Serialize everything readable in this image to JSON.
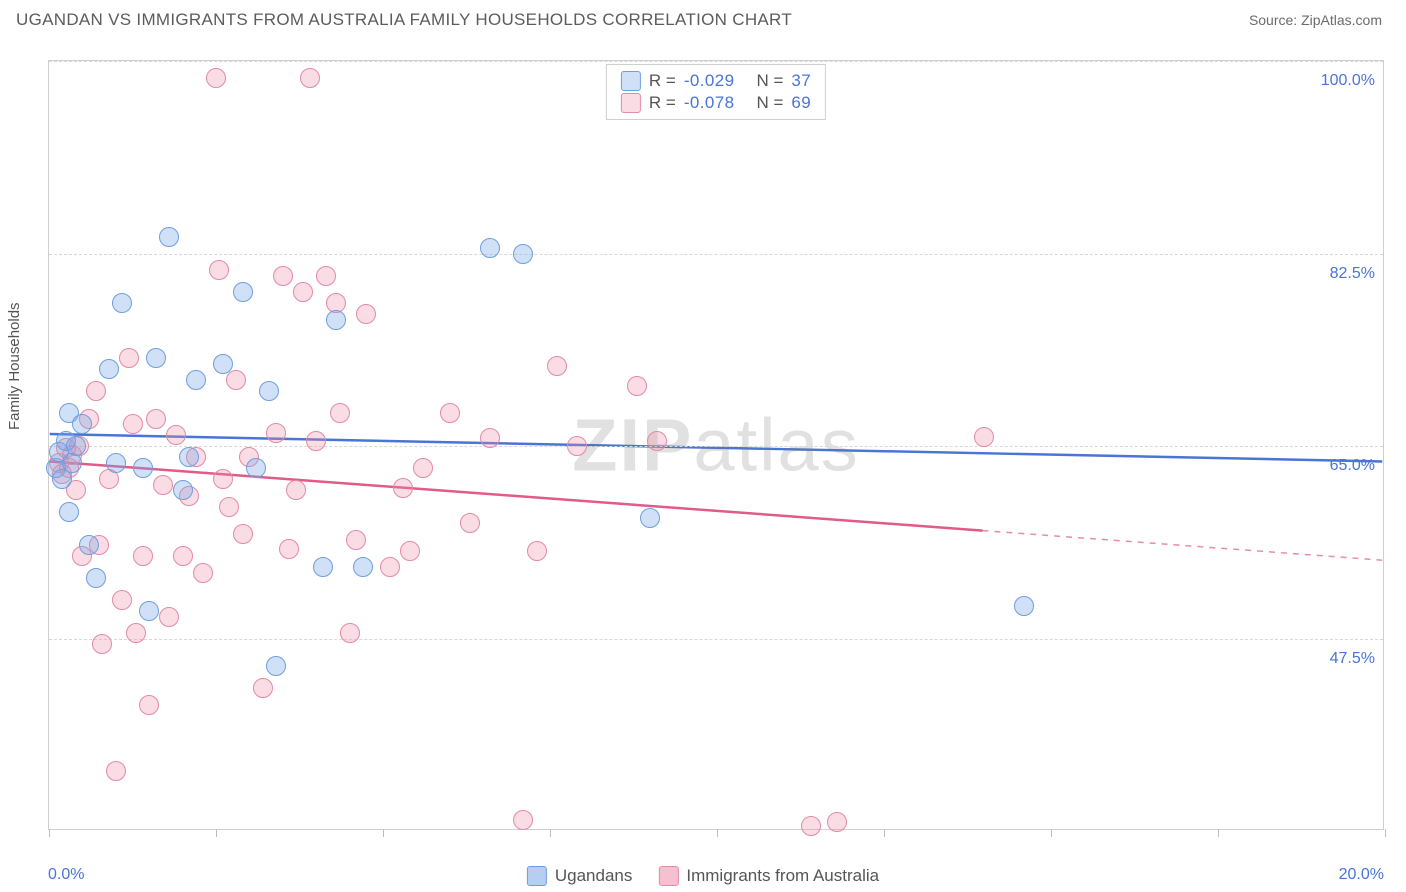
{
  "title": "UGANDAN VS IMMIGRANTS FROM AUSTRALIA FAMILY HOUSEHOLDS CORRELATION CHART",
  "source": "Source: ZipAtlas.com",
  "ylabel": "Family Households",
  "watermark": {
    "bold": "ZIP",
    "light": "atlas"
  },
  "chart": {
    "type": "scatter",
    "background_color": "#ffffff",
    "grid_color": "#d8d8d8",
    "border_color": "#cfcfcf",
    "xlim": [
      0,
      20
    ],
    "ylim": [
      30,
      100
    ],
    "xticks": [
      0,
      2.5,
      5,
      7.5,
      10,
      12.5,
      15,
      17.5,
      20
    ],
    "yticks": [
      47.5,
      65.0,
      82.5,
      100.0
    ],
    "xlabel_min": "0.0%",
    "xlabel_max": "20.0%",
    "ytick_labels": [
      "47.5%",
      "65.0%",
      "82.5%",
      "100.0%"
    ],
    "marker_radius": 10,
    "tick_fontsize": 16,
    "tick_color": "#4a74d6",
    "label_fontsize": 15,
    "label_color": "#555555"
  },
  "series": [
    {
      "name": "Ugandans",
      "R": "-0.029",
      "N": "37",
      "fill": "rgba(120,165,230,0.35)",
      "stroke": "#6f9ee0",
      "line_color": "#4a74d6",
      "line_width": 2.5,
      "trend": {
        "y_at_xmin": 66.0,
        "y_at_xmax": 63.5,
        "solid_until_x": 20.0
      },
      "points": [
        [
          0.1,
          63
        ],
        [
          0.15,
          64.5
        ],
        [
          0.2,
          62
        ],
        [
          0.25,
          65.5
        ],
        [
          0.3,
          59
        ],
        [
          0.3,
          68
        ],
        [
          0.35,
          63.5
        ],
        [
          0.4,
          65
        ],
        [
          0.5,
          67
        ],
        [
          0.6,
          56
        ],
        [
          0.7,
          53
        ],
        [
          0.9,
          72
        ],
        [
          1.0,
          63.5
        ],
        [
          1.1,
          78
        ],
        [
          1.4,
          63
        ],
        [
          1.5,
          50
        ],
        [
          1.6,
          73
        ],
        [
          1.8,
          84
        ],
        [
          2.0,
          61
        ],
        [
          2.1,
          64
        ],
        [
          2.2,
          71
        ],
        [
          2.6,
          72.5
        ],
        [
          2.9,
          79
        ],
        [
          3.1,
          63
        ],
        [
          3.3,
          70
        ],
        [
          3.4,
          45
        ],
        [
          4.1,
          54
        ],
        [
          4.3,
          76.5
        ],
        [
          4.7,
          54
        ],
        [
          6.6,
          83
        ],
        [
          7.1,
          82.5
        ],
        [
          9.0,
          58.5
        ],
        [
          14.6,
          50.5
        ]
      ]
    },
    {
      "name": "Immigrants from Australia",
      "R": "-0.078",
      "N": "69",
      "fill": "rgba(240,140,170,0.30)",
      "stroke": "#e48aa7",
      "line_color": "#e05a8a",
      "line_width": 2.5,
      "trend": {
        "y_at_xmin": 63.5,
        "y_at_xmax": 54.5,
        "solid_until_x": 14.0
      },
      "points": [
        [
          0.15,
          63.5
        ],
        [
          0.2,
          62.5
        ],
        [
          0.25,
          64.8
        ],
        [
          0.3,
          63
        ],
        [
          0.35,
          64.2
        ],
        [
          0.4,
          61
        ],
        [
          0.45,
          65
        ],
        [
          0.5,
          55
        ],
        [
          0.6,
          67.5
        ],
        [
          0.7,
          70
        ],
        [
          0.75,
          56
        ],
        [
          0.8,
          47
        ],
        [
          0.9,
          62
        ],
        [
          1.0,
          35.5
        ],
        [
          1.1,
          51
        ],
        [
          1.2,
          73
        ],
        [
          1.25,
          67
        ],
        [
          1.3,
          48
        ],
        [
          1.4,
          55
        ],
        [
          1.5,
          41.5
        ],
        [
          1.6,
          67.5
        ],
        [
          1.7,
          61.5
        ],
        [
          1.8,
          49.5
        ],
        [
          1.9,
          66
        ],
        [
          2.0,
          55
        ],
        [
          2.1,
          60.5
        ],
        [
          2.2,
          64
        ],
        [
          2.3,
          53.5
        ],
        [
          2.5,
          98.5
        ],
        [
          2.55,
          81
        ],
        [
          2.6,
          62
        ],
        [
          2.7,
          59.5
        ],
        [
          2.8,
          71
        ],
        [
          2.9,
          57
        ],
        [
          3.0,
          64
        ],
        [
          3.2,
          43
        ],
        [
          3.4,
          66.2
        ],
        [
          3.5,
          80.5
        ],
        [
          3.6,
          55.6
        ],
        [
          3.7,
          61
        ],
        [
          3.8,
          79
        ],
        [
          3.9,
          98.5
        ],
        [
          4.0,
          65.5
        ],
        [
          4.15,
          80.5
        ],
        [
          4.3,
          78
        ],
        [
          4.35,
          68
        ],
        [
          4.5,
          48
        ],
        [
          4.6,
          56.5
        ],
        [
          4.75,
          77
        ],
        [
          5.1,
          54
        ],
        [
          5.3,
          61.2
        ],
        [
          5.4,
          55.5
        ],
        [
          5.6,
          63
        ],
        [
          6.0,
          68
        ],
        [
          6.3,
          58
        ],
        [
          6.6,
          65.7
        ],
        [
          7.1,
          31
        ],
        [
          7.3,
          55.5
        ],
        [
          7.6,
          72.3
        ],
        [
          7.9,
          65
        ],
        [
          8.8,
          70.5
        ],
        [
          9.1,
          65.5
        ],
        [
          11.4,
          30.5
        ],
        [
          11.8,
          30.8
        ],
        [
          14.0,
          65.8
        ]
      ]
    }
  ],
  "legend_bottom": [
    {
      "label": "Ugandans",
      "fill": "rgba(120,165,230,0.55)",
      "stroke": "#6f9ee0"
    },
    {
      "label": "Immigrants from Australia",
      "fill": "rgba(240,140,170,0.55)",
      "stroke": "#e48aa7"
    }
  ]
}
